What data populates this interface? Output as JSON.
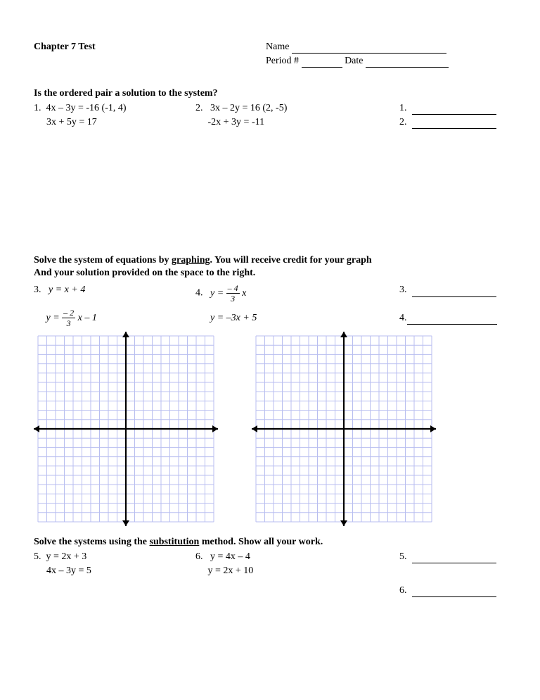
{
  "header": {
    "title": "Chapter 7 Test",
    "name_label": "Name",
    "period_label": "Period #",
    "date_label": "Date"
  },
  "section1": {
    "heading": "Is the ordered pair a solution to the system?",
    "q1_num": "1.",
    "q1_line1": "4x – 3y = -16   (-1, 4)",
    "q1_line2": "3x + 5y = 17",
    "q2_num": "2.",
    "q2_line1": "3x – 2y = 16   (2, -5)",
    "q2_line2": "-2x + 3y = -11",
    "ans1_num": "1.",
    "ans2_num": "2."
  },
  "section2": {
    "heading_a": "Solve the system of equations by ",
    "heading_u": "graphing",
    "heading_b": ". You will receive credit for your graph",
    "heading_line2": "And your solution provided on the space to the right.",
    "q3_num": "3.",
    "q3_eq1_pre": "y",
    "q3_eq1_post": " = x + 4",
    "q3_eq2_pre": "y = ",
    "q3_eq2_num": "– 2",
    "q3_eq2_den": "3",
    "q3_eq2_post": " x – 1",
    "q4_num": "4.",
    "q4_eq1_pre": "y = ",
    "q4_eq1_num": "– 4",
    "q4_eq1_den": "3",
    "q4_eq1_post": " x",
    "q4_eq2": "y = –3x + 5",
    "ans3_num": "3.",
    "ans4_num": "4."
  },
  "section3": {
    "heading_a": "Solve the systems using the ",
    "heading_u": "substitution",
    "heading_b": " method. Show all your work.",
    "q5_num": "5.",
    "q5_line1": "y = 2x + 3",
    "q5_line2": "4x – 3y = 5",
    "q6_num": "6.",
    "q6_line1": "y = 4x – 4",
    "q6_line2": "y = 2x + 10",
    "ans5_num": "5.",
    "ans6_num": "6."
  },
  "graph": {
    "grid_cells": 20,
    "grid_color": "#b8bef0",
    "axis_color": "#000000",
    "background": "#ffffff",
    "axis_width": 2.2,
    "arrow_size": 5
  }
}
